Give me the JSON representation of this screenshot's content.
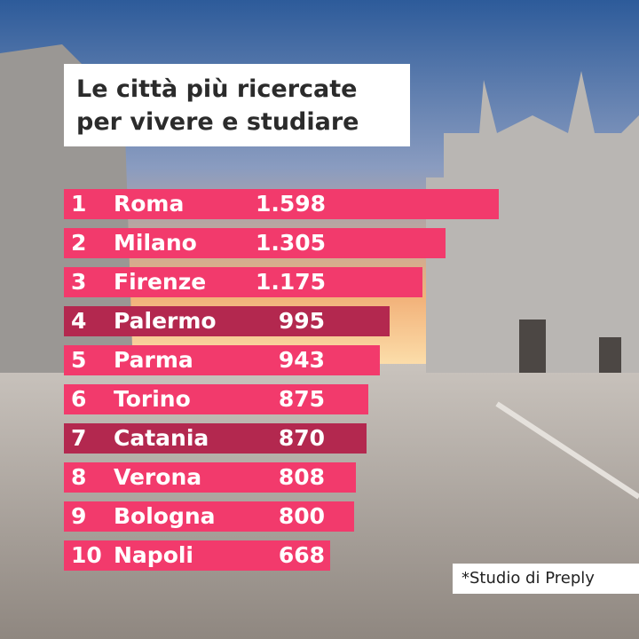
{
  "chart_data": {
    "type": "bar",
    "title": "Le città più ricercate per vivere e studiare",
    "ranks": [
      "1",
      "2",
      "3",
      "4",
      "5",
      "6",
      "7",
      "8",
      "9",
      "10"
    ],
    "categories": [
      "Roma",
      "Milano",
      "Firenze",
      "Palermo",
      "Parma",
      "Torino",
      "Catania",
      "Verona",
      "Bologna",
      "Napoli"
    ],
    "values": [
      1598,
      1305,
      1175,
      995,
      943,
      875,
      870,
      808,
      800,
      668
    ],
    "value_labels": [
      "1.598",
      "1.305",
      "1.175",
      "995",
      "943",
      "875",
      "870",
      "808",
      "800",
      "668"
    ],
    "colors": [
      "#f23a6c",
      "#f23a6c",
      "#f23a6c",
      "#b3284f",
      "#f23a6c",
      "#f23a6c",
      "#b3284f",
      "#f23a6c",
      "#f23a6c",
      "#f23a6c"
    ],
    "source": "*Studio di Preply"
  }
}
